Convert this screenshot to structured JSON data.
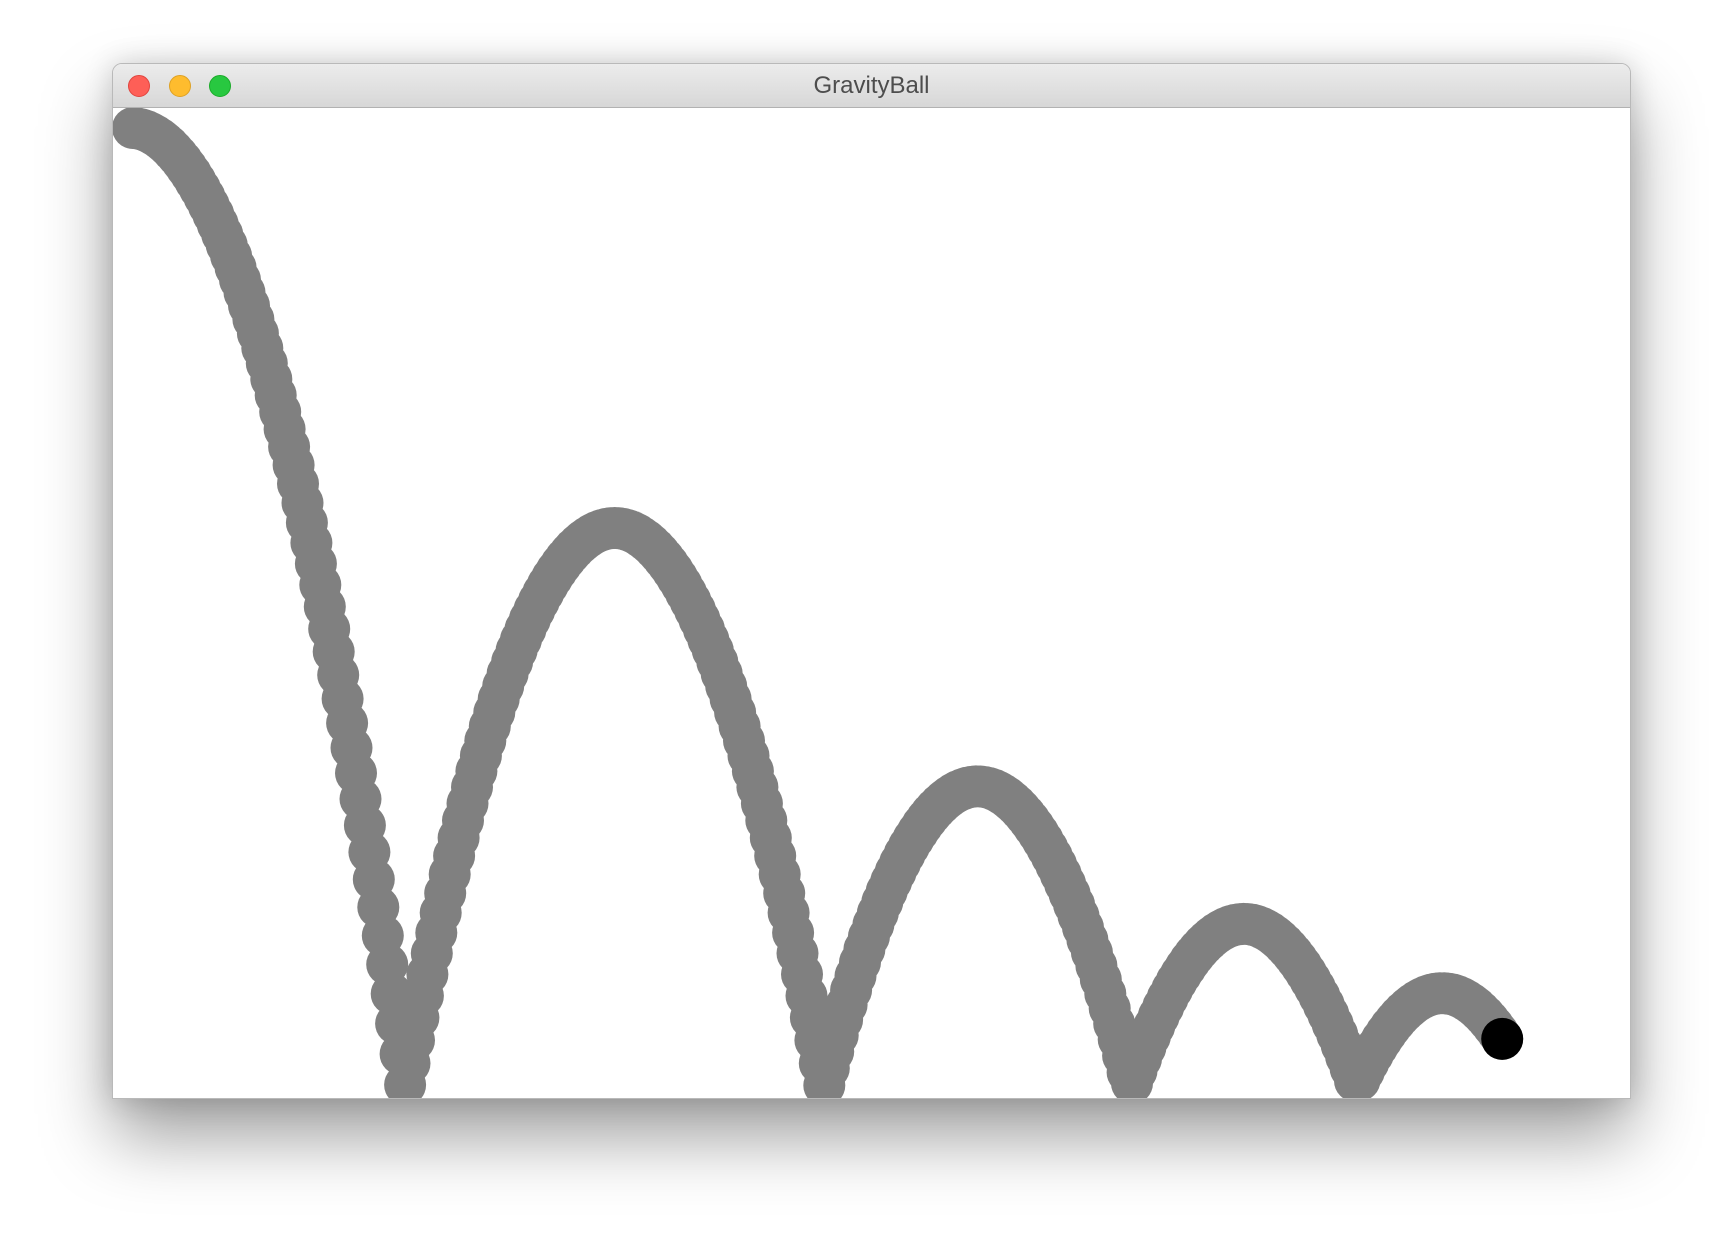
{
  "window": {
    "title": "GravityBall",
    "controls": [
      {
        "name": "close-button",
        "color": "#fe5f57"
      },
      {
        "name": "minimize-button",
        "color": "#febc2e"
      },
      {
        "name": "zoom-button",
        "color": "#28c840"
      }
    ]
  },
  "scene": {
    "background": "#ffffff",
    "trail_color": "#808080",
    "ball_color": "#000000"
  }
}
